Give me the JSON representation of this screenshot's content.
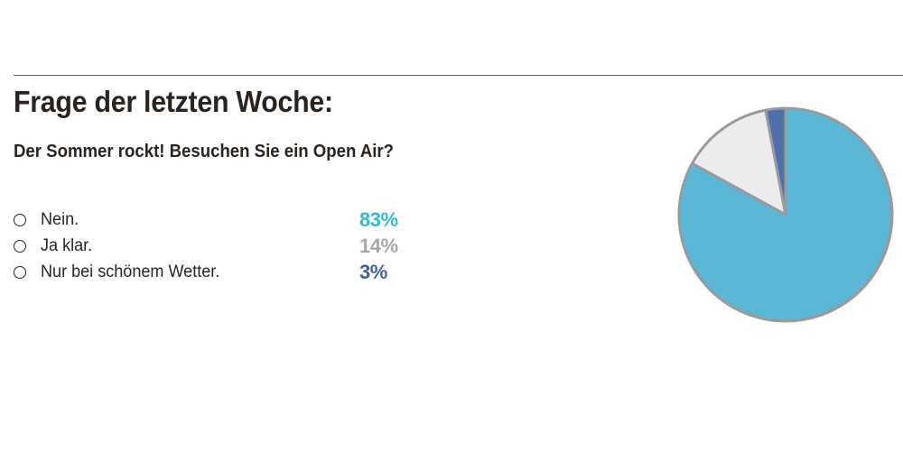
{
  "header": {
    "title": "Frage der letzten Woche:",
    "question": "Der Sommer rockt! Besuchen Sie ein Open Air?"
  },
  "options": [
    {
      "label": "Nein.",
      "value_text": "83%",
      "color": "#2fb9dc"
    },
    {
      "label": "Ja klar.",
      "value_text": "14%",
      "color": "#a8a8a8"
    },
    {
      "label": "Nur bei schönem Wetter.",
      "value_text": "3%",
      "color": "#3d5ea8"
    }
  ],
  "colors": {
    "rule": "#3b63a8",
    "text": "#2b2320",
    "pie_stroke": "#9a9a9a"
  },
  "chart_data": {
    "type": "pie",
    "categories": [
      "Nein.",
      "Ja klar.",
      "Nur bei schönem Wetter."
    ],
    "values": [
      83,
      14,
      3
    ],
    "colors": [
      "#5ab8d6",
      "#ececee",
      "#4f70aa"
    ],
    "start_angle_deg": 0,
    "direction": "clockwise"
  }
}
